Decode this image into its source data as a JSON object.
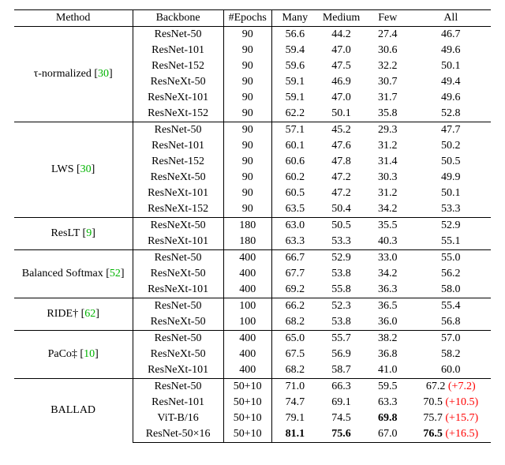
{
  "columns": [
    "Method",
    "Backbone",
    "#Epochs",
    "Many",
    "Medium",
    "Few",
    "All"
  ],
  "groups": [
    {
      "method_html": "<span class='mvar'>&tau;</span>-normalized [<span class='cite'>30</span>]",
      "rows": [
        {
          "backbone": "ResNet-50",
          "epochs": "90",
          "many": "56.6",
          "medium": "44.2",
          "few": "27.4",
          "all": "46.7"
        },
        {
          "backbone": "ResNet-101",
          "epochs": "90",
          "many": "59.4",
          "medium": "47.0",
          "few": "30.6",
          "all": "49.6"
        },
        {
          "backbone": "ResNet-152",
          "epochs": "90",
          "many": "59.6",
          "medium": "47.5",
          "few": "32.2",
          "all": "50.1"
        },
        {
          "backbone": "ResNeXt-50",
          "epochs": "90",
          "many": "59.1",
          "medium": "46.9",
          "few": "30.7",
          "all": "49.4"
        },
        {
          "backbone": "ResNeXt-101",
          "epochs": "90",
          "many": "59.1",
          "medium": "47.0",
          "few": "31.7",
          "all": "49.6"
        },
        {
          "backbone": "ResNeXt-152",
          "epochs": "90",
          "many": "62.2",
          "medium": "50.1",
          "few": "35.8",
          "all": "52.8"
        }
      ]
    },
    {
      "method_html": "LWS [<span class='cite'>30</span>]",
      "rows": [
        {
          "backbone": "ResNet-50",
          "epochs": "90",
          "many": "57.1",
          "medium": "45.2",
          "few": "29.3",
          "all": "47.7"
        },
        {
          "backbone": "ResNet-101",
          "epochs": "90",
          "many": "60.1",
          "medium": "47.6",
          "few": "31.2",
          "all": "50.2"
        },
        {
          "backbone": "ResNet-152",
          "epochs": "90",
          "many": "60.6",
          "medium": "47.8",
          "few": "31.4",
          "all": "50.5"
        },
        {
          "backbone": "ResNeXt-50",
          "epochs": "90",
          "many": "60.2",
          "medium": "47.2",
          "few": "30.3",
          "all": "49.9"
        },
        {
          "backbone": "ResNeXt-101",
          "epochs": "90",
          "many": "60.5",
          "medium": "47.2",
          "few": "31.2",
          "all": "50.1"
        },
        {
          "backbone": "ResNeXt-152",
          "epochs": "90",
          "many": "63.5",
          "medium": "50.4",
          "few": "34.2",
          "all": "53.3"
        }
      ]
    },
    {
      "method_html": "ResLT [<span class='cite'>9</span>]",
      "rows": [
        {
          "backbone": "ResNeXt-50",
          "epochs": "180",
          "many": "63.0",
          "medium": "50.5",
          "few": "35.5",
          "all": "52.9"
        },
        {
          "backbone": "ResNeXt-101",
          "epochs": "180",
          "many": "63.3",
          "medium": "53.3",
          "few": "40.3",
          "all": "55.1"
        }
      ]
    },
    {
      "method_html": "Balanced Softmax [<span class='cite'>52</span>]",
      "rows": [
        {
          "backbone": "ResNet-50",
          "epochs": "400",
          "many": "66.7",
          "medium": "52.9",
          "few": "33.0",
          "all": "55.0"
        },
        {
          "backbone": "ResNeXt-50",
          "epochs": "400",
          "many": "67.7",
          "medium": "53.8",
          "few": "34.2",
          "all": "56.2"
        },
        {
          "backbone": "ResNeXt-101",
          "epochs": "400",
          "many": "69.2",
          "medium": "55.8",
          "few": "36.3",
          "all": "58.0"
        }
      ]
    },
    {
      "method_html": "RIDE&dagger; [<span class='cite'>62</span>]",
      "rows": [
        {
          "backbone": "ResNet-50",
          "epochs": "100",
          "many": "66.2",
          "medium": "52.3",
          "few": "36.5",
          "all": "55.4"
        },
        {
          "backbone": "ResNeXt-50",
          "epochs": "100",
          "many": "68.2",
          "medium": "53.8",
          "few": "36.0",
          "all": "56.8"
        }
      ]
    },
    {
      "method_html": "PaCo&Dagger; [<span class='cite'>10</span>]",
      "rows": [
        {
          "backbone": "ResNet-50",
          "epochs": "400",
          "many": "65.0",
          "medium": "55.7",
          "few": "38.2",
          "all": "57.0"
        },
        {
          "backbone": "ResNeXt-50",
          "epochs": "400",
          "many": "67.5",
          "medium": "56.9",
          "few": "36.8",
          "all": "58.2"
        },
        {
          "backbone": "ResNeXt-101",
          "epochs": "400",
          "many": "68.2",
          "medium": "58.7",
          "few": "41.0",
          "all": "60.0"
        }
      ]
    },
    {
      "method_html": "BALLAD",
      "rows": [
        {
          "backbone": "ResNet-50",
          "epochs": "50+10",
          "many": "71.0",
          "medium": "66.3",
          "few": "59.5",
          "all": "67.2",
          "delta": "(+7.2)"
        },
        {
          "backbone": "ResNet-101",
          "epochs": "50+10",
          "many": "74.7",
          "medium": "69.1",
          "few": "63.3",
          "all": "70.5",
          "delta": "(+10.5)"
        },
        {
          "backbone": "ViT-B/16",
          "epochs": "50+10",
          "many": "79.1",
          "medium": "74.5",
          "few": "69.8",
          "few_bold": true,
          "all": "75.7",
          "delta": "(+15.7)"
        },
        {
          "backbone": "ResNet-50&times;16",
          "epochs": "50+10",
          "many": "81.1",
          "many_bold": true,
          "medium": "75.6",
          "medium_bold": true,
          "few": "67.0",
          "all": "76.5",
          "all_bold": true,
          "delta": "(+16.5)"
        }
      ]
    }
  ]
}
